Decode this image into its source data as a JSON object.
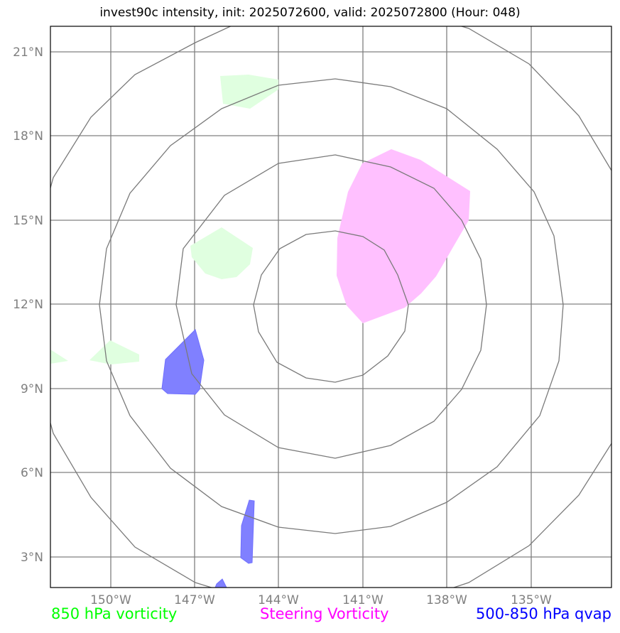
{
  "title": "invest90c intensity, init: 2025072600, valid: 2025072800 (Hour: 048)",
  "lat_labels": [
    "21°N",
    "18°N",
    "15°N",
    "12°N",
    "9°N",
    "6°N",
    "3°N"
  ],
  "lon_labels": [
    "150°W",
    "147°W",
    "144°W",
    "141°W",
    "138°W",
    "135°W"
  ],
  "legend": {
    "vort850": "850 hPa vorticity",
    "steering": "Steering Vorticity",
    "qvap": "500-850 hPa qvap"
  },
  "colors": {
    "vort850_fill": "#e0ffe0",
    "steering_fill": "#ffc0ff",
    "qvap_fill": "#8080ff",
    "grid": "#808080",
    "rings": "#7a7a7a",
    "vort850_text": "#00ff00",
    "steering_text": "#ff00ff",
    "qvap_text": "#0000ff"
  }
}
